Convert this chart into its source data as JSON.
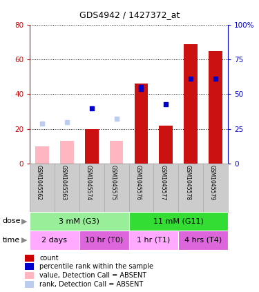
{
  "title": "GDS4942 / 1427372_at",
  "samples": [
    "GSM1045562",
    "GSM1045563",
    "GSM1045574",
    "GSM1045575",
    "GSM1045576",
    "GSM1045577",
    "GSM1045578",
    "GSM1045579"
  ],
  "red_bars": [
    null,
    null,
    20,
    null,
    46,
    22,
    69,
    65
  ],
  "pink_bars": [
    10,
    13,
    null,
    13,
    null,
    null,
    null,
    null
  ],
  "blue_squares": [
    null,
    null,
    32,
    null,
    44,
    34,
    null,
    null
  ],
  "light_blue_squares": [
    23,
    24,
    null,
    26,
    null,
    null,
    null,
    null
  ],
  "blue_squares_on_bar": [
    null,
    null,
    null,
    null,
    43,
    null,
    49,
    49
  ],
  "ylim_left": [
    0,
    80
  ],
  "ylim_right": [
    0,
    100
  ],
  "yticks_left": [
    0,
    20,
    40,
    60,
    80
  ],
  "yticks_right": [
    0,
    25,
    50,
    75,
    100
  ],
  "ytick_labels_left": [
    "0",
    "20",
    "40",
    "60",
    "80"
  ],
  "ytick_labels_right": [
    "0",
    "25",
    "50",
    "75",
    "100%"
  ],
  "dose_groups": [
    {
      "label": "3 mM (G3)",
      "start": 0,
      "end": 4,
      "color": "#99EE99"
    },
    {
      "label": "11 mM (G11)",
      "start": 4,
      "end": 8,
      "color": "#33DD33"
    }
  ],
  "time_colors": [
    "#FFAAFF",
    "#DD66DD",
    "#FFAAFF",
    "#DD66DD"
  ],
  "time_groups": [
    {
      "label": "2 days",
      "start": 0,
      "end": 2
    },
    {
      "label": "10 hr (T0)",
      "start": 2,
      "end": 4
    },
    {
      "label": "1 hr (T1)",
      "start": 4,
      "end": 6
    },
    {
      "label": "4 hrs (T4)",
      "start": 6,
      "end": 8
    }
  ],
  "legend_items": [
    {
      "color": "#CC0000",
      "label": "count"
    },
    {
      "color": "#0000CC",
      "label": "percentile rank within the sample"
    },
    {
      "color": "#FFB6C1",
      "label": "value, Detection Call = ABSENT"
    },
    {
      "color": "#BBCCEE",
      "label": "rank, Detection Call = ABSENT"
    }
  ],
  "bar_width": 0.55,
  "bar_color_red": "#CC1111",
  "bar_color_pink": "#FFB6C1",
  "square_color_blue": "#0000CC",
  "square_color_light_blue": "#BBCCEE",
  "background_color": "#ffffff",
  "plot_bg": "#ffffff",
  "left_axis_color": "#CC0000",
  "right_axis_color": "#0000CC",
  "label_bg": "#CCCCCC",
  "n_samples": 8
}
